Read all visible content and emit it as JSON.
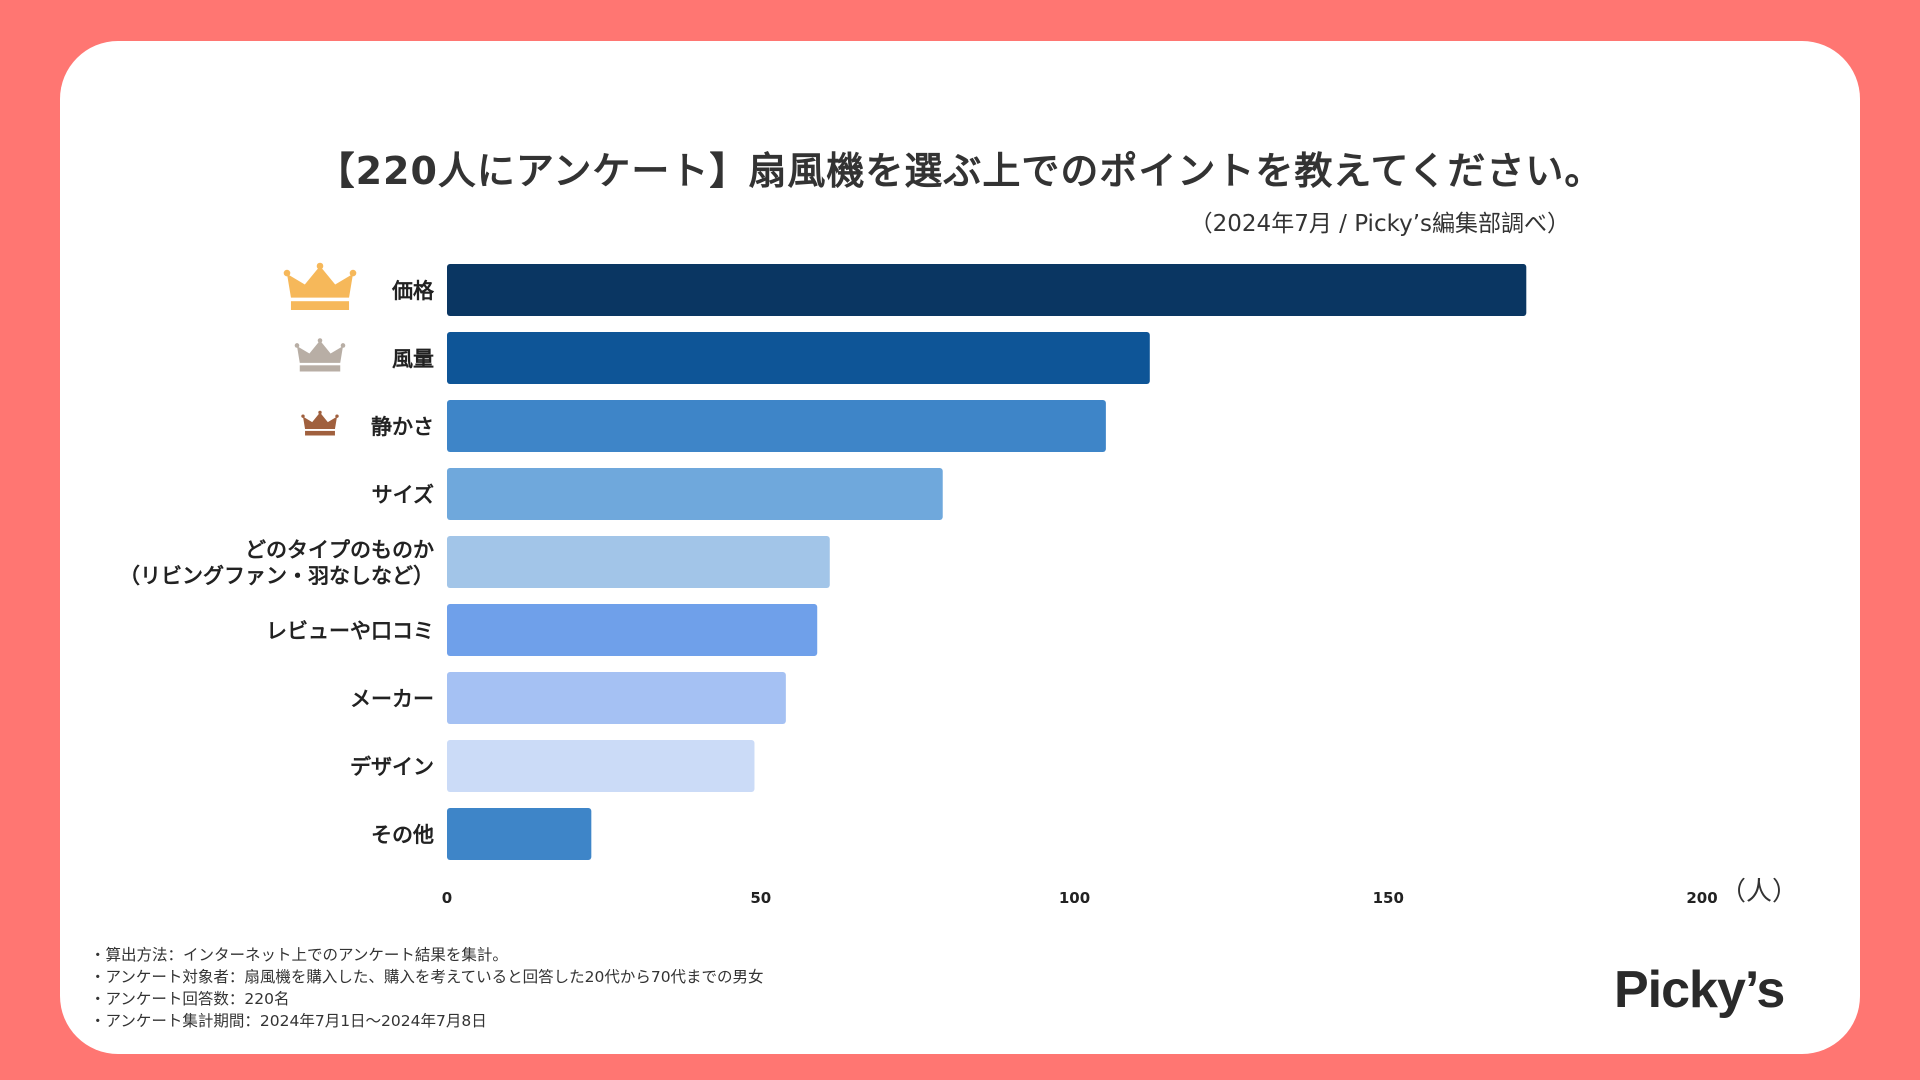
{
  "chart_data": {
    "type": "bar",
    "orientation": "horizontal",
    "title": "【220人にアンケート】扇風機を選ぶ上でのポイントを教えてください。",
    "subtitle": "（2024年7月 / Picky’s編集部調べ）",
    "categories": [
      [
        "価格"
      ],
      [
        "風量"
      ],
      [
        "静かさ"
      ],
      [
        "サイズ"
      ],
      [
        "どのタイプのものか",
        "（リビングファン・羽なしなど）"
      ],
      [
        "レビューや口コミ"
      ],
      [
        "メーカー"
      ],
      [
        "デザイン"
      ],
      [
        "その他"
      ]
    ],
    "values": [
      172,
      112,
      105,
      79,
      61,
      59,
      54,
      49,
      23
    ],
    "bar_colors": [
      "#0a3662",
      "#0e5597",
      "#3e85c8",
      "#6fa8dc",
      "#a2c5e8",
      "#6fa0ea",
      "#a5c1f3",
      "#cbdbf7",
      "#3e85c8"
    ],
    "ranks": [
      {
        "rank": 1,
        "icon": "gold-crown-icon",
        "color": "#f6b85a"
      },
      {
        "rank": 2,
        "icon": "silver-crown-icon",
        "color": "#b8aea5"
      },
      {
        "rank": 3,
        "icon": "bronze-crown-icon",
        "color": "#a0603e"
      }
    ],
    "xlim": [
      0,
      200
    ],
    "xticks": [
      0,
      50,
      100,
      150,
      200
    ],
    "xlabel": "（人）",
    "grid": false
  },
  "footnotes": [
    "・算出方法：インターネット上でのアンケート結果を集計。",
    "・アンケート対象者：扇風機を購入した、購入を考えていると回答した20代から70代までの男女",
    "・アンケート回答数：220名",
    "・アンケート集計期間：2024年7月1日〜2024年7月8日"
  ],
  "logo": "Picky’s",
  "colors": {
    "background": "#ff7672",
    "card": "#ffffff",
    "text": "#333333"
  }
}
